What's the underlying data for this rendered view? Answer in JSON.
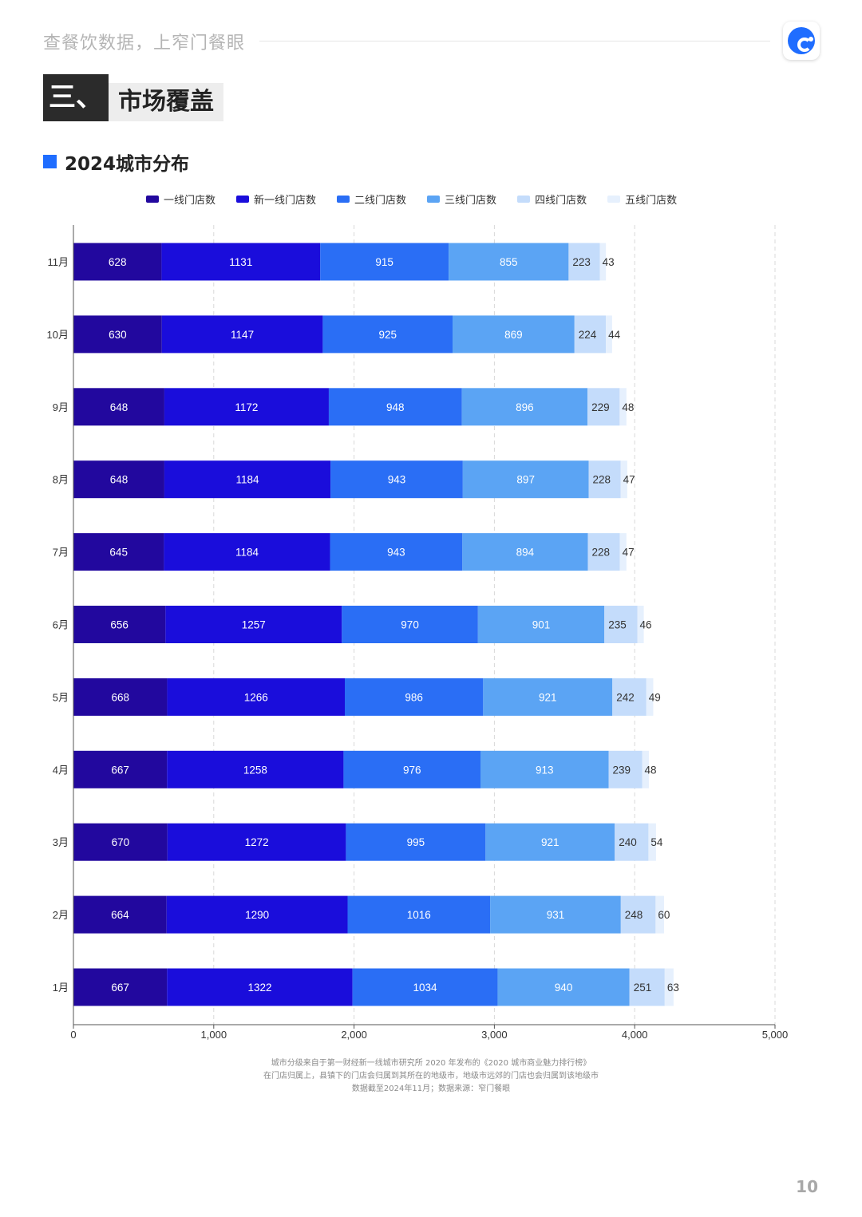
{
  "header": {
    "tagline": "查餐饮数据，上窄门餐眼",
    "section_number": "三、",
    "section_title": "市场覆盖"
  },
  "subtitle": "2024城市分布",
  "chart_data": {
    "type": "bar",
    "orientation": "horizontal",
    "stacked": true,
    "categories": [
      "11月",
      "10月",
      "9月",
      "8月",
      "7月",
      "6月",
      "5月",
      "4月",
      "3月",
      "2月",
      "1月"
    ],
    "series": [
      {
        "name": "一线门店数",
        "color": "#22089e",
        "values": [
          628,
          630,
          648,
          648,
          645,
          656,
          668,
          667,
          670,
          664,
          667
        ]
      },
      {
        "name": "新一线门店数",
        "color": "#1a0ddb",
        "values": [
          1131,
          1147,
          1172,
          1184,
          1184,
          1257,
          1266,
          1258,
          1272,
          1290,
          1322
        ]
      },
      {
        "name": "二线门店数",
        "color": "#2a6ef5",
        "values": [
          915,
          925,
          948,
          943,
          943,
          970,
          986,
          976,
          995,
          1016,
          1034
        ]
      },
      {
        "name": "三线门店数",
        "color": "#5ba4f4",
        "values": [
          855,
          869,
          896,
          897,
          894,
          901,
          921,
          913,
          921,
          931,
          940
        ]
      },
      {
        "name": "四线门店数",
        "color": "#c4dcfb",
        "values": [
          223,
          224,
          229,
          228,
          228,
          235,
          242,
          239,
          240,
          248,
          251
        ]
      },
      {
        "name": "五线门店数",
        "color": "#e6f0fd",
        "values": [
          43,
          44,
          48,
          47,
          47,
          46,
          49,
          48,
          54,
          60,
          63
        ]
      }
    ],
    "xlim": [
      0,
      5000
    ],
    "xticks": [
      0,
      1000,
      2000,
      3000,
      4000,
      5000
    ],
    "xtick_labels": [
      "0",
      "1,000",
      "2,000",
      "3,000",
      "4,000",
      "5,000"
    ],
    "grid": "vertical dashed",
    "legend_position": "top"
  },
  "footnotes": [
    "城市分级来自于第一财经新一线城市研究所 2020 年发布的《2020 城市商业魅力排行榜》",
    "在门店归属上，县镇下的门店会归属到其所在的地级市，地级市远郊的门店也会归属到该地级市",
    "数据截至2024年11月；数据来源：窄门餐眼"
  ],
  "page_number": "10"
}
